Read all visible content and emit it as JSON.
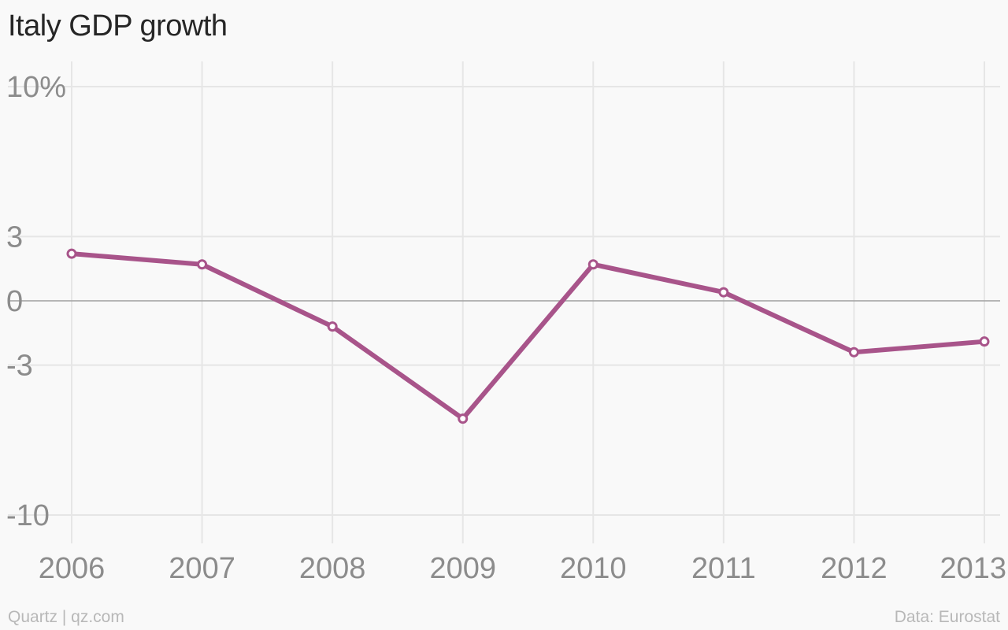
{
  "title": "Italy GDP growth",
  "footer": {
    "credit": "Quartz | qz.com",
    "source": "Data: Eurostat"
  },
  "colors": {
    "line": "#a8548a",
    "grid": "#e6e6e6",
    "zero": "#a0a0a0",
    "tick": "#8c8c8c",
    "background": "#f9f9f9"
  },
  "chart_data": {
    "type": "line",
    "title": "Italy GDP growth",
    "x": [
      "2006",
      "2007",
      "2008",
      "2009",
      "2010",
      "2011",
      "2012",
      "2013"
    ],
    "series": [
      {
        "values": [
          2.2,
          1.7,
          -1.2,
          -5.5,
          1.7,
          0.4,
          -2.4,
          -1.9
        ]
      }
    ],
    "yticks": [
      10,
      3,
      0,
      -3,
      -10
    ],
    "ytick_labels": [
      "10%",
      "3",
      "0",
      "-3",
      "-10"
    ],
    "ylim": [
      -11.2,
      10.8
    ],
    "grid": true,
    "legend": "none"
  }
}
